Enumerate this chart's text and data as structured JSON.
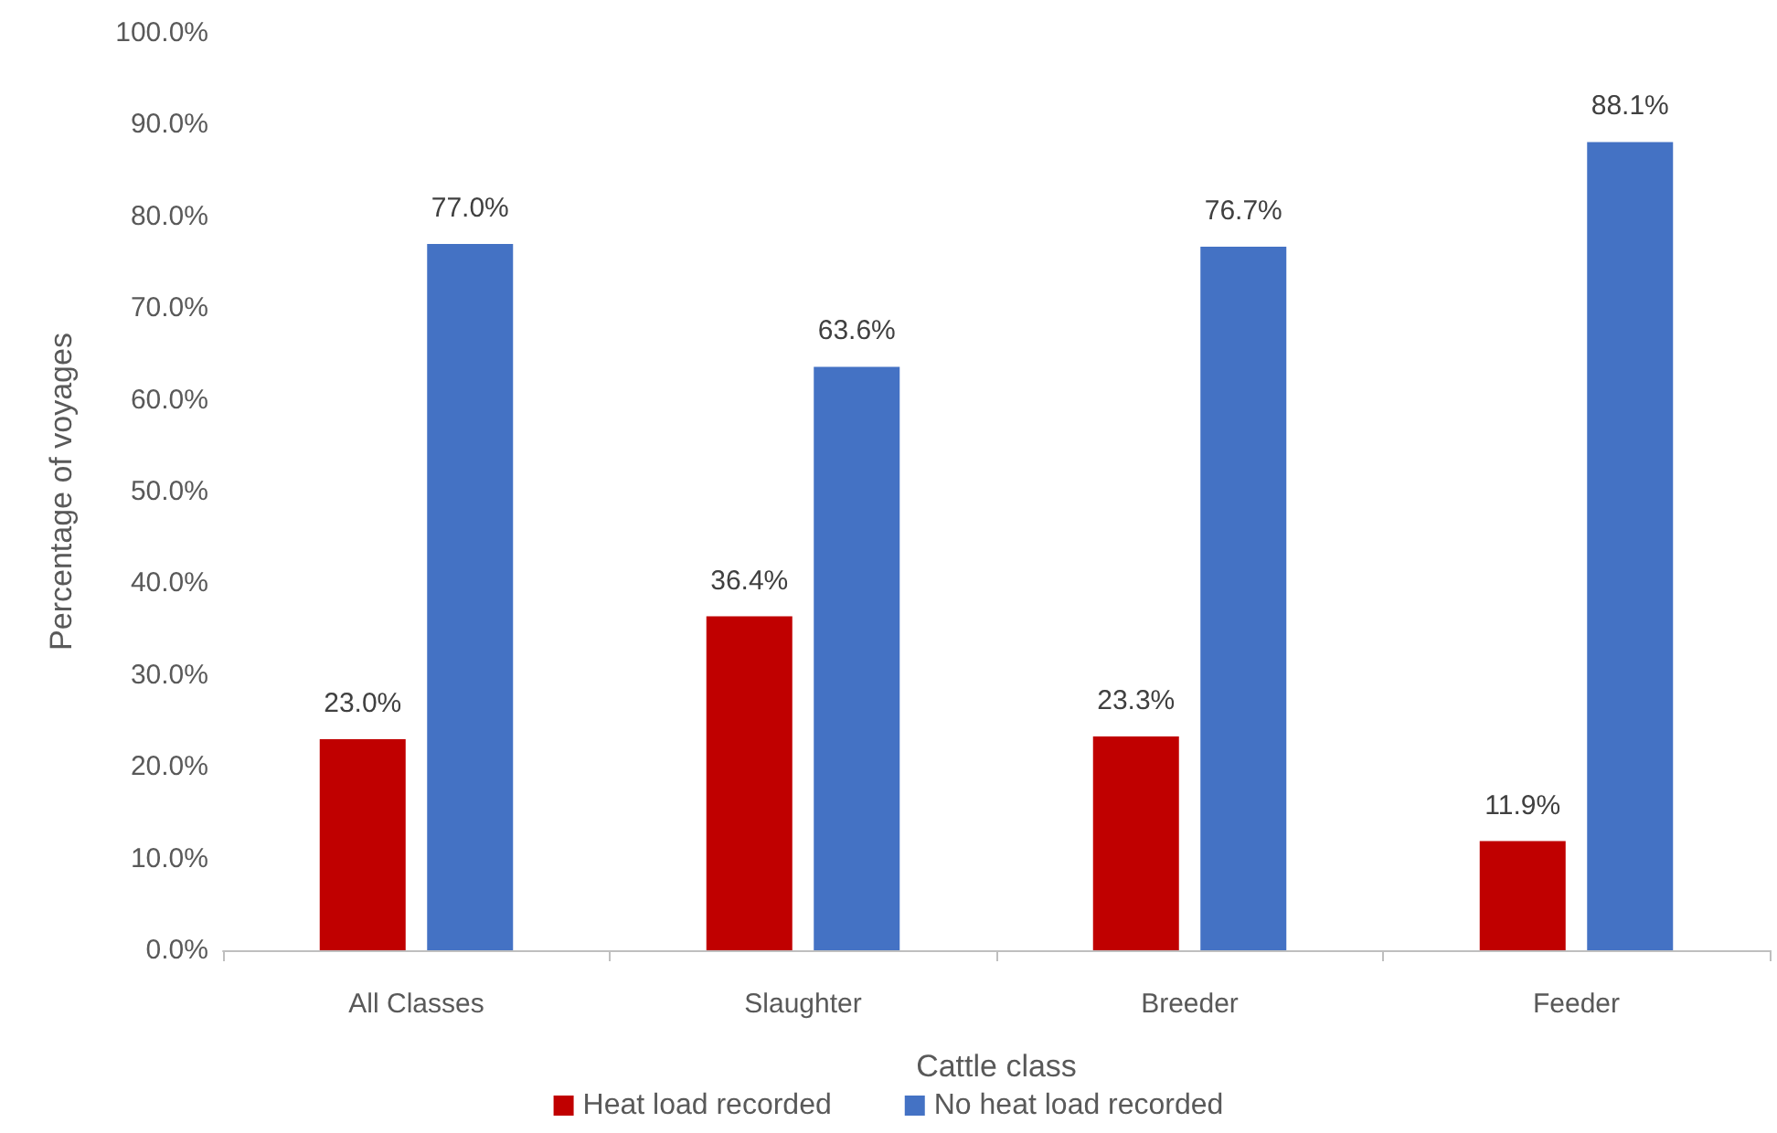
{
  "chart_data": {
    "type": "bar",
    "xlabel": "Cattle class",
    "ylabel": "Percentage of voyages",
    "categories": [
      "All Classes",
      "Slaughter",
      "Breeder",
      "Feeder"
    ],
    "series": [
      {
        "name": "Heat load recorded",
        "color": "#c00000",
        "values": [
          23.0,
          36.4,
          23.3,
          11.9
        ],
        "value_labels": [
          "23.0%",
          "36.4%",
          "23.3%",
          "11.9%"
        ]
      },
      {
        "name": "No heat load recorded",
        "color": "#4472c4",
        "values": [
          77.0,
          63.6,
          76.7,
          88.1
        ],
        "value_labels": [
          "77.0%",
          "63.6%",
          "76.7%",
          "88.1%"
        ]
      }
    ],
    "ylim": [
      0,
      100
    ],
    "yticks": [
      {
        "value": 0,
        "label": "0.0%"
      },
      {
        "value": 10,
        "label": "10.0%"
      },
      {
        "value": 20,
        "label": "20.0%"
      },
      {
        "value": 30,
        "label": "30.0%"
      },
      {
        "value": 40,
        "label": "40.0%"
      },
      {
        "value": 50,
        "label": "50.0%"
      },
      {
        "value": 60,
        "label": "60.0%"
      },
      {
        "value": 70,
        "label": "70.0%"
      },
      {
        "value": 80,
        "label": "80.0%"
      },
      {
        "value": 90,
        "label": "90.0%"
      },
      {
        "value": 100,
        "label": "100.0%"
      }
    ],
    "grid": false,
    "legend": "bottom"
  }
}
